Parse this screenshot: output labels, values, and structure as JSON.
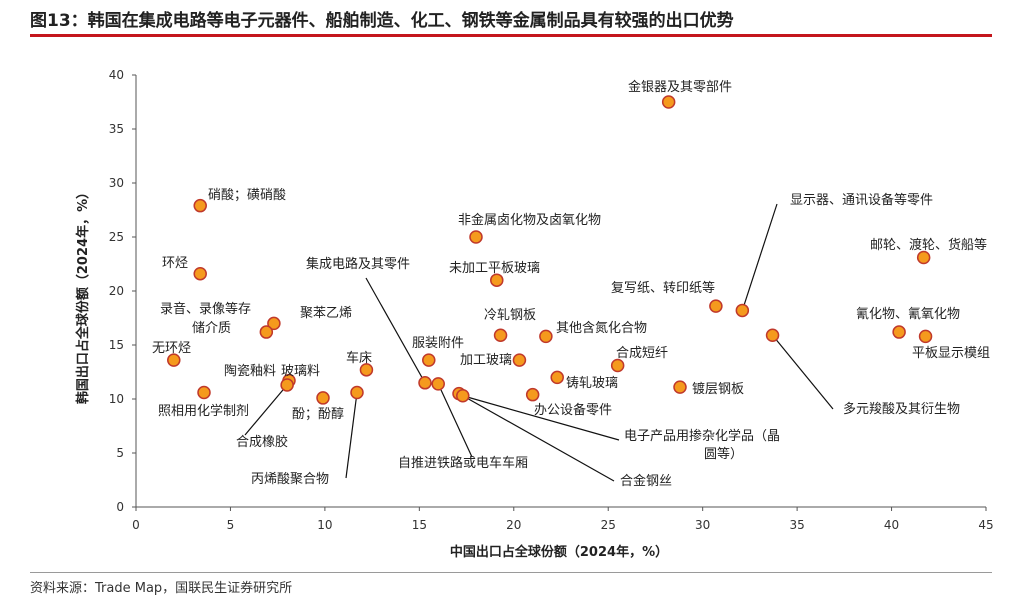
{
  "title": "图13：韩国在集成电路等电子元器件、船舶制造、化工、钢铁等金属制品具有较强的出口优势",
  "source": "资料来源：Trade Map，国联民生证券研究所",
  "colors": {
    "accent": "#c4161c",
    "point_fill": "#f59a1d",
    "point_stroke": "#c0392b"
  },
  "chart_data": {
    "type": "scatter",
    "title": "",
    "xlabel": "中国出口占全球份额（2024年，%）",
    "ylabel": "韩国出口占全球份额（2024年，%）",
    "xlim": [
      0,
      45
    ],
    "ylim": [
      0,
      40
    ],
    "xticks": [
      "0",
      "5",
      "10",
      "15",
      "20",
      "25",
      "30",
      "35",
      "40",
      "45"
    ],
    "yticks": [
      "0",
      "5",
      "10",
      "15",
      "20",
      "25",
      "30",
      "35",
      "40"
    ],
    "grid": false,
    "legend": "none",
    "points": [
      {
        "label": "硝酸；磺硝酸",
        "x": 3.4,
        "y": 27.9
      },
      {
        "label": "环烃",
        "x": 3.4,
        "y": 21.6
      },
      {
        "label": "录音、录像等存",
        "x": 7.3,
        "y": 17.0
      },
      {
        "label": "储介质",
        "x": 6.9,
        "y": 16.2
      },
      {
        "label": "聚苯乙烯",
        "x": null,
        "y": null
      },
      {
        "label": "无环烃",
        "x": 2.0,
        "y": 13.6
      },
      {
        "label": "照相用化学制剂",
        "x": 3.6,
        "y": 10.6
      },
      {
        "label": "陶瓷釉料",
        "x": 8.1,
        "y": 11.7
      },
      {
        "label": "玻璃料",
        "x": null,
        "y": null
      },
      {
        "label": "合成橡胶",
        "x": 8.0,
        "y": 11.3
      },
      {
        "label": "酚；酚醇",
        "x": 9.9,
        "y": 10.1
      },
      {
        "label": "车床",
        "x": 12.2,
        "y": 12.7
      },
      {
        "label": "丙烯酸聚合物",
        "x": 11.7,
        "y": 10.6
      },
      {
        "label": "集成电路及其零件",
        "x": 15.3,
        "y": 11.5
      },
      {
        "label": "服装附件",
        "x": 15.5,
        "y": 13.6
      },
      {
        "label": "自推进铁路或电车车厢",
        "x": 16.0,
        "y": 11.4
      },
      {
        "label": "非金属卤化物及卤氧化物",
        "x": 18.0,
        "y": 25.0
      },
      {
        "label": "未加工平板玻璃",
        "x": 19.1,
        "y": 21.0
      },
      {
        "label": "冷轧钢板",
        "x": 19.3,
        "y": 15.9
      },
      {
        "label": "加工玻璃",
        "x": 20.3,
        "y": 13.6
      },
      {
        "label": "其他含氮化合物",
        "x": 21.7,
        "y": 15.8
      },
      {
        "label": "铸轧玻璃",
        "x": 22.3,
        "y": 12.0
      },
      {
        "label": "办公设备零件",
        "x": 21.0,
        "y": 10.4
      },
      {
        "label": "合金钢丝",
        "x": 17.1,
        "y": 10.5
      },
      {
        "label": "电子产品用掺杂化学品（晶圆等）",
        "x": 17.3,
        "y": 10.3
      },
      {
        "label": "合成短纤",
        "x": 25.5,
        "y": 13.1
      },
      {
        "label": "金银器及其零部件",
        "x": 28.2,
        "y": 37.5
      },
      {
        "label": "复写纸、转印纸等",
        "x": 30.7,
        "y": 18.6
      },
      {
        "label": "镀层钢板",
        "x": 28.8,
        "y": 11.1
      },
      {
        "label": "显示器、通讯设备等零件",
        "x": 32.1,
        "y": 18.2
      },
      {
        "label": "多元羧酸及其衍生物",
        "x": 33.7,
        "y": 15.9
      },
      {
        "label": "邮轮、渡轮、货船等",
        "x": 41.7,
        "y": 23.1
      },
      {
        "label": "氰化物、氰氧化物",
        "x": 40.4,
        "y": 16.2
      },
      {
        "label": "平板显示模组",
        "x": 41.8,
        "y": 15.8
      }
    ]
  }
}
